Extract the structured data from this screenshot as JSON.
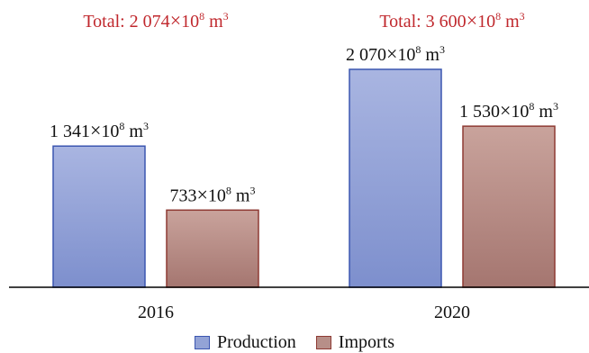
{
  "chart_data": {
    "type": "bar",
    "categories": [
      "2016",
      "2020"
    ],
    "series": [
      {
        "name": "Production",
        "values": [
          1341,
          2070
        ],
        "labels": [
          "1 341×10⁸ m³",
          "2 070×10⁸ m³"
        ],
        "fill": "#93a3d6",
        "stroke": "#3b56b0"
      },
      {
        "name": "Imports",
        "values": [
          733,
          1530
        ],
        "labels": [
          "733×10⁸ m³",
          "1 530×10⁸ m³"
        ],
        "fill": "#b78f88",
        "stroke": "#8e3a33"
      }
    ],
    "totals": [
      "Total: 2 074×10⁸ m³",
      "Total: 3 600×10⁸ m³"
    ],
    "total_color": "#c0282d",
    "ylim": [
      0,
      2070
    ],
    "title": "",
    "xlabel": "",
    "ylabel": "",
    "grid": false,
    "legend_position": "bottom"
  }
}
